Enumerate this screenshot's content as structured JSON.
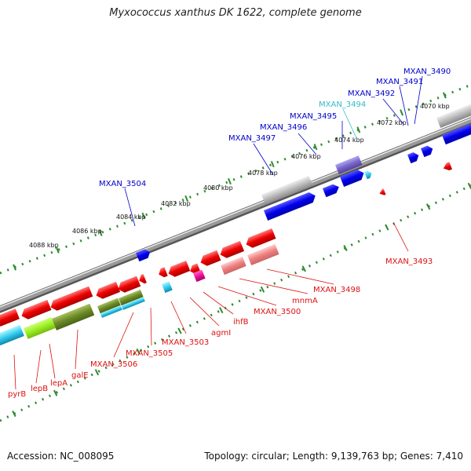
{
  "title": "Myxococcus xanthus DK 1622, complete genome",
  "footer": {
    "accession": "Accession: NC_008095",
    "topology": "Topology: circular; Length: 9,139,763 bp; Genes: 7,410"
  },
  "ticks": [
    "4070 kbp",
    "4072 kbp",
    "4074 kbp",
    "4076 kbp",
    "4078 kbp",
    "4080 kbp",
    "4082 kbp",
    "4084 kbp",
    "4086 kbp",
    "4088 kbp"
  ],
  "labels_top": [
    "MXAN_3490",
    "MXAN_3491",
    "MXAN_3492",
    "MXAN_3494",
    "MXAN_3495",
    "MXAN_3496",
    "MXAN_3497",
    "MXAN_3504"
  ],
  "labels_bottom": [
    "MXAN_3493",
    "MXAN_3498",
    "mnmA",
    "MXAN_3500",
    "ihfB",
    "agmI",
    "MXAN_3503",
    "MXAN_3505",
    "MXAN_3506",
    "galE",
    "lepA",
    "lepB",
    "pyrB"
  ],
  "colors": {
    "top_label": "#0000cc",
    "top_label_highlight": "#33bbcc",
    "bottom_label": "#dd1111",
    "backbone": "#8c8c8c",
    "tick_dots": "#2e8b2e",
    "forward_gene": "#0000dd",
    "reverse_gene": "#ee1111"
  }
}
